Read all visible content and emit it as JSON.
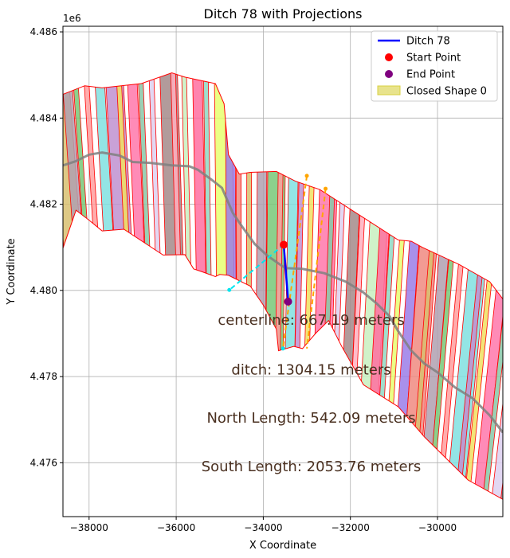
{
  "chart_data": {
    "type": "line",
    "title": "Ditch 78 with Projections",
    "xlabel": "X Coordinate",
    "ylabel": "Y Coordinate",
    "y_offset_label": "1e6",
    "xlim": [
      -38600,
      -28500
    ],
    "ylim": [
      4474750,
      4486130
    ],
    "x_ticks": [
      -38000,
      -36000,
      -34000,
      -32000,
      -30000
    ],
    "x_tick_labels": [
      "−38000",
      "−36000",
      "−34000",
      "−32000",
      "−30000"
    ],
    "y_ticks": [
      4476000,
      4478000,
      4480000,
      4482000,
      4484000,
      4486000
    ],
    "y_tick_labels": [
      "4.476",
      "4.478",
      "4.480",
      "4.482",
      "4.484",
      "4.486"
    ],
    "grid": true,
    "legend_position": "top-right",
    "colors": {
      "ditch": "#0000ff",
      "start": "#ff0000",
      "end": "#800080",
      "closed_shape_fill": "#d8d040",
      "closed_shape_edge": "#ff0000",
      "centerline": "#808080",
      "north_projection": "#00e5ee",
      "south_projection": "#ffa500",
      "annotation_text": "#4a3020"
    },
    "legend": [
      {
        "label": "Ditch 78",
        "kind": "line",
        "color": "#0000ff"
      },
      {
        "label": "Start Point",
        "kind": "marker",
        "color": "#ff0000"
      },
      {
        "label": "End Point",
        "kind": "marker",
        "color": "#800080"
      },
      {
        "label": "Closed Shape 0",
        "kind": "patch",
        "color": "#d8d040"
      }
    ],
    "ditch_line": {
      "x": [
        -33530,
        -33430
      ],
      "y": [
        4481060,
        4479740
      ]
    },
    "start_point": {
      "x": -33530,
      "y": 4481060
    },
    "end_point": {
      "x": -33430,
      "y": 4479740
    },
    "north_projection": {
      "x": [
        -33530,
        -34780
      ],
      "y": [
        4481060,
        4480010
      ]
    },
    "south_projection": {
      "start": {
        "x": [
          -33000,
          -33550
        ],
        "y": [
          4482660,
          4478650
        ]
      },
      "end": {
        "x": [
          -32570,
          -33000
        ],
        "y": [
          4482360,
          4478650
        ]
      }
    },
    "centerline": {
      "x": [
        -38600,
        -38300,
        -38000,
        -37700,
        -37300,
        -37000,
        -36600,
        -36100,
        -35700,
        -35500,
        -35200,
        -34950,
        -34700,
        -34500,
        -34200,
        -33900,
        -33500,
        -33100,
        -32600,
        -32100,
        -31700,
        -31400,
        -31100,
        -30900,
        -30600,
        -30300,
        -30000,
        -29600,
        -29200,
        -28800,
        -28500
      ],
      "y": [
        4482900,
        4483000,
        4483150,
        4483200,
        4483130,
        4482980,
        4482960,
        4482900,
        4482880,
        4482800,
        4482580,
        4482380,
        4481800,
        4481500,
        4481080,
        4480800,
        4480520,
        4480500,
        4480400,
        4480200,
        4479950,
        4479700,
        4479400,
        4479050,
        4478600,
        4478300,
        4478100,
        4477750,
        4477500,
        4477100,
        4476700
      ]
    },
    "closed_shape_outline": {
      "x": [
        -38600,
        -38100,
        -37700,
        -36800,
        -36100,
        -35800,
        -35100,
        -34900,
        -34800,
        -34550,
        -34300,
        -33700,
        -33250,
        -32700,
        -32100,
        -31500,
        -30900,
        -30600,
        -30350,
        -29500,
        -28800,
        -28500,
        -28500,
        -29300,
        -30300,
        -30900,
        -31700,
        -32200,
        -32500,
        -32800,
        -33100,
        -33300,
        -33650,
        -33700,
        -34000,
        -34300,
        -34800,
        -35000,
        -35100,
        -35400,
        -35600,
        -35800,
        -36300,
        -37200,
        -37700,
        -38000,
        -38300,
        -38600
      ],
      "y": [
        4484550,
        4484750,
        4484700,
        4484800,
        4485050,
        4484950,
        4484800,
        4484330,
        4483150,
        4482700,
        4482740,
        4482760,
        4482530,
        4482340,
        4481950,
        4481560,
        4481170,
        4481140,
        4481000,
        4480600,
        4480200,
        4479800,
        4475150,
        4475600,
        4476600,
        4477300,
        4477810,
        4478700,
        4479300,
        4479000,
        4478650,
        4478700,
        4478600,
        4479100,
        4479660,
        4480100,
        4480350,
        4480370,
        4480320,
        4480430,
        4480500,
        4480830,
        4480820,
        4481420,
        4481380,
        4481630,
        4481860,
        4480980
      ]
    },
    "annotations": [
      {
        "text": "centerline: 667.19 meters",
        "x": -32900,
        "y": 4479200
      },
      {
        "text": "ditch: 1304.15 meters",
        "x": -32900,
        "y": 4478050
      },
      {
        "text": "North Length: 542.09 meters",
        "x": -32900,
        "y": 4476930
      },
      {
        "text": "South Length: 2053.76 meters",
        "x": -32900,
        "y": 4475800
      }
    ]
  }
}
